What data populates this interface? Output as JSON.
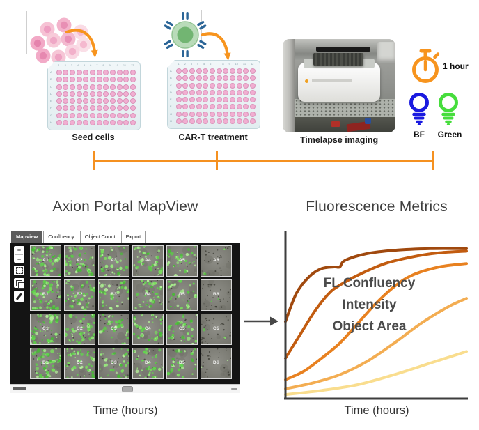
{
  "workflow": {
    "steps": [
      {
        "label": "Seed cells"
      },
      {
        "label": "CAR-T treatment"
      },
      {
        "label": "Timelapse imaging"
      }
    ],
    "timer": {
      "label": "1 hour",
      "color": "#F7941E"
    },
    "channels": [
      {
        "label": "BF",
        "color": "#1a1ae0"
      },
      {
        "label": "Green",
        "color": "#46dd3c"
      }
    ],
    "timeline_color": "#F59120",
    "arrow_color": "#F7941E"
  },
  "plate": {
    "row_labels": [
      "A",
      "B",
      "C",
      "D",
      "E",
      "F",
      "G",
      "H"
    ],
    "col_labels": [
      "1",
      "2",
      "3",
      "4",
      "5",
      "6",
      "7",
      "8",
      "9",
      "10",
      "11",
      "12"
    ],
    "body_color": "#EAF2F4",
    "well_color": "#F1AED1"
  },
  "cart_icon": {
    "halo_color": "#b9dbb9",
    "cell_color": "#72b572",
    "receptor_color": "#2b6597"
  },
  "cell_cluster": {
    "outer_colors": [
      "#f6c2d4",
      "#f3b3cb",
      "#fadce6",
      "#f2a9c6",
      "#f7cbd9",
      "#f3b9cf",
      "#fadfe7",
      "#f2aac7",
      "#f6c6d6",
      "#f9d6e2"
    ],
    "inner_colors": [
      "#ee9ec1",
      "#e88fb4",
      "#f4bbd2",
      "#e583ad",
      "#efa8c6",
      "#e88fb6",
      "#f5b9cf",
      "#e688b0",
      "#eea2c2",
      "#f2b0ca"
    ]
  },
  "mapview": {
    "title": "Axion Portal MapView",
    "xlabel": "Time (hours)",
    "tabs": [
      {
        "label": "Mapview",
        "active": true
      },
      {
        "label": "Confluency",
        "active": false
      },
      {
        "label": "Object Count",
        "active": false
      },
      {
        "label": "Export",
        "active": false
      }
    ],
    "toolbar_glyphs": {
      "zoom_in": "+",
      "zoom_out": "−"
    },
    "toolbar_icons": [
      "zoom-in",
      "zoom-out",
      "fit-view",
      "layers",
      "draw"
    ],
    "speckle_palette": [
      "#5ec84a",
      "#7ada5e",
      "#49b838",
      "#96e67d",
      "#62d44f",
      "#b4f09a"
    ],
    "wells": [
      {
        "label": "A1",
        "density": 0.95
      },
      {
        "label": "A2",
        "density": 0.8
      },
      {
        "label": "A3",
        "density": 0.6
      },
      {
        "label": "A4",
        "density": 0.55
      },
      {
        "label": "A5",
        "density": 0.5
      },
      {
        "label": "A6",
        "density": 0.06
      },
      {
        "label": "B1",
        "density": 0.9
      },
      {
        "label": "B2",
        "density": 0.8
      },
      {
        "label": "B3",
        "density": 0.6
      },
      {
        "label": "B4",
        "density": 0.6
      },
      {
        "label": "B5",
        "density": 0.5
      },
      {
        "label": "B6",
        "density": 0.06
      },
      {
        "label": "C1",
        "density": 0.9
      },
      {
        "label": "C2",
        "density": 0.75
      },
      {
        "label": "C3",
        "density": 0.5
      },
      {
        "label": "C4",
        "density": 0.55
      },
      {
        "label": "C5",
        "density": 0.45
      },
      {
        "label": "C6",
        "density": 0.05
      },
      {
        "label": "D1",
        "density": 0.85
      },
      {
        "label": "D2",
        "density": 0.7
      },
      {
        "label": "D3",
        "density": 0.5
      },
      {
        "label": "D4",
        "density": 0.5
      },
      {
        "label": "D5",
        "density": 0.45
      },
      {
        "label": "D6",
        "density": 0.05
      }
    ]
  },
  "chart_data": {
    "type": "line",
    "title": "Fluorescence Metrics",
    "xlabel": "Time (hours)",
    "ylabel": "",
    "annotations": [
      "FL Confluency",
      "Intensity",
      "Object Area"
    ],
    "axis_color": "#3d3d3d",
    "x_range_norm": [
      0,
      1
    ],
    "y_range_norm": [
      0,
      1
    ],
    "grid": false,
    "legend": false,
    "series": [
      {
        "name": "curve-1-darkest",
        "color": "#a0490e",
        "x": [
          0,
          0.06,
          0.13,
          0.2,
          0.27,
          0.3,
          0.33,
          0.45,
          0.6,
          0.8,
          1.0
        ],
        "y": [
          0.46,
          0.63,
          0.73,
          0.78,
          0.79,
          0.79,
          0.83,
          0.87,
          0.89,
          0.9,
          0.9
        ]
      },
      {
        "name": "curve-2",
        "color": "#c25c10",
        "x": [
          0,
          0.08,
          0.16,
          0.24,
          0.3,
          0.4,
          0.55,
          0.7,
          0.85,
          1.0
        ],
        "y": [
          0.24,
          0.38,
          0.52,
          0.63,
          0.68,
          0.74,
          0.81,
          0.85,
          0.875,
          0.885
        ]
      },
      {
        "name": "curve-3",
        "color": "#e88120",
        "x": [
          0,
          0.1,
          0.2,
          0.3,
          0.4,
          0.5,
          0.6,
          0.7,
          0.85,
          1.0
        ],
        "y": [
          0.11,
          0.16,
          0.24,
          0.33,
          0.45,
          0.57,
          0.67,
          0.74,
          0.79,
          0.81
        ]
      },
      {
        "name": "curve-4",
        "color": "#f3ad52",
        "x": [
          0,
          0.15,
          0.3,
          0.45,
          0.6,
          0.75,
          0.9,
          1.0
        ],
        "y": [
          0.055,
          0.09,
          0.14,
          0.22,
          0.33,
          0.45,
          0.55,
          0.6
        ]
      },
      {
        "name": "curve-5-lightest",
        "color": "#f9dd8e",
        "x": [
          0,
          0.2,
          0.4,
          0.6,
          0.8,
          1.0
        ],
        "y": [
          0.02,
          0.045,
          0.08,
          0.14,
          0.21,
          0.28
        ]
      }
    ]
  }
}
